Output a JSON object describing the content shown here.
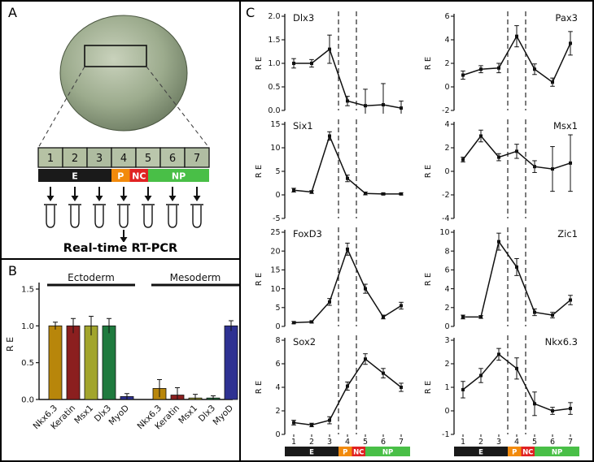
{
  "figure": {
    "panel_a_label": "A",
    "panel_b_label": "B",
    "panel_c_label": "C"
  },
  "panel_a": {
    "section_numbers": [
      "1",
      "2",
      "3",
      "4",
      "5",
      "6",
      "7"
    ],
    "regions": [
      {
        "label": "E",
        "color": "#1a1a1a",
        "text_color": "#ffffff",
        "units": 3
      },
      {
        "label": "P",
        "color": "#f28a0c",
        "text_color": "#ffffff",
        "units": 0.75
      },
      {
        "label": "NC",
        "color": "#e02222",
        "text_color": "#ffffff",
        "units": 0.75
      },
      {
        "label": "NP",
        "color": "#49bf47",
        "text_color": "#ffffff",
        "units": 2.5
      }
    ],
    "caption": "Real-time RT-PCR"
  },
  "x_axis": {
    "ticks": [
      "1",
      "2",
      "3",
      "4",
      "5",
      "6",
      "7"
    ]
  },
  "chart_data": [
    {
      "type": "bar",
      "panel": "B",
      "ylabel": "R E",
      "ylim": [
        0,
        1.5
      ],
      "yticks": [
        0,
        0.5,
        1,
        1.5
      ],
      "ytick_labels": [
        "0.0",
        "0.5",
        "1.0",
        "1.5"
      ],
      "bar_colors": [
        "#b8860b",
        "#8b1f1f",
        "#a2a52c",
        "#1f7a3e",
        "#2e3192"
      ],
      "groups": [
        {
          "label": "Ectoderm",
          "categories": [
            "Nkx6.3",
            "Keratin",
            "Msx1",
            "Dlx3",
            "MyoD"
          ],
          "values": [
            1.0,
            1.0,
            1.0,
            1.0,
            0.04
          ],
          "errors": [
            0.05,
            0.1,
            0.13,
            0.1,
            0.04
          ]
        },
        {
          "label": "Mesoderm",
          "categories": [
            "Nkx6.3",
            "Keratin",
            "Msx1",
            "Dlx3",
            "MyoD"
          ],
          "values": [
            0.15,
            0.06,
            0.02,
            0.02,
            1.0
          ],
          "errors": [
            0.12,
            0.1,
            0.05,
            0.03,
            0.07
          ]
        }
      ]
    },
    {
      "type": "line",
      "panel": "C",
      "title": "Dlx3",
      "title_side": "left",
      "ylabel": "R E",
      "x": [
        1,
        2,
        3,
        4,
        5,
        6,
        7
      ],
      "y": [
        1.0,
        1.0,
        1.3,
        0.2,
        0.1,
        0.12,
        0.05
      ],
      "errors": [
        0.1,
        0.08,
        0.3,
        0.1,
        0.35,
        0.45,
        0.15
      ],
      "ylim": [
        0,
        2
      ],
      "yticks": [
        0,
        0.5,
        1,
        1.5,
        2
      ],
      "ytick_labels": [
        "0.0",
        "0.5",
        "1.0",
        "1.5",
        "2.0"
      ],
      "dashed_x": [
        3.5,
        4.5
      ]
    },
    {
      "type": "line",
      "panel": "C",
      "title": "Pax3",
      "title_side": "right",
      "ylabel": "R E",
      "x": [
        1,
        2,
        3,
        4,
        5,
        6,
        7
      ],
      "y": [
        1.0,
        1.5,
        1.6,
        4.3,
        1.5,
        0.4,
        3.7
      ],
      "errors": [
        0.35,
        0.3,
        0.4,
        0.9,
        0.45,
        0.35,
        1.0
      ],
      "ylim": [
        -2,
        6
      ],
      "yticks": [
        -2,
        0,
        2,
        4,
        6
      ],
      "ytick_labels": [
        "-2",
        "0",
        "2",
        "4",
        "6"
      ],
      "dashed_x": [
        3.5,
        4.5
      ]
    },
    {
      "type": "line",
      "panel": "C",
      "title": "Six1",
      "title_side": "left",
      "ylabel": "R E",
      "x": [
        1,
        2,
        3,
        4,
        5,
        6,
        7
      ],
      "y": [
        1.0,
        0.6,
        12.5,
        3.5,
        0.3,
        0.2,
        0.2
      ],
      "errors": [
        0.4,
        0.3,
        0.9,
        0.7,
        0.3,
        0.2,
        0.2
      ],
      "ylim": [
        -5,
        15
      ],
      "yticks": [
        -5,
        0,
        5,
        10,
        15
      ],
      "ytick_labels": [
        "-5",
        "0",
        "5",
        "10",
        "15"
      ],
      "dashed_x": [
        3.5,
        4.5
      ]
    },
    {
      "type": "line",
      "panel": "C",
      "title": "Msx1",
      "title_side": "right",
      "ylabel": "R E",
      "x": [
        1,
        2,
        3,
        4,
        5,
        6,
        7
      ],
      "y": [
        1.0,
        3.0,
        1.2,
        1.7,
        0.4,
        0.2,
        0.7
      ],
      "errors": [
        0.2,
        0.5,
        0.3,
        0.6,
        0.5,
        1.9,
        2.4
      ],
      "ylim": [
        -4,
        4
      ],
      "yticks": [
        -4,
        -2,
        0,
        2,
        4
      ],
      "ytick_labels": [
        "-4",
        "-2",
        "0",
        "2",
        "4"
      ],
      "dashed_x": [
        3.5,
        4.5
      ]
    },
    {
      "type": "line",
      "panel": "C",
      "title": "FoxD3",
      "title_side": "left",
      "ylabel": "R E",
      "x": [
        1,
        2,
        3,
        4,
        5,
        6,
        7
      ],
      "y": [
        1.0,
        1.2,
        6.5,
        20.5,
        10.0,
        2.5,
        5.5
      ],
      "errors": [
        0.3,
        0.3,
        0.9,
        1.6,
        1.2,
        0.5,
        0.9
      ],
      "ylim": [
        0,
        25
      ],
      "yticks": [
        0,
        5,
        10,
        15,
        20,
        25
      ],
      "ytick_labels": [
        "0",
        "5",
        "10",
        "15",
        "20",
        "25"
      ],
      "dashed_x": [
        3.5,
        4.5
      ]
    },
    {
      "type": "line",
      "panel": "C",
      "title": "Zic1",
      "title_side": "right",
      "ylabel": "R E",
      "x": [
        1,
        2,
        3,
        4,
        5,
        6,
        7
      ],
      "y": [
        1.0,
        1.0,
        9.0,
        6.3,
        1.5,
        1.2,
        2.8
      ],
      "errors": [
        0.2,
        0.15,
        0.9,
        0.9,
        0.35,
        0.3,
        0.5
      ],
      "ylim": [
        0,
        10
      ],
      "yticks": [
        0,
        2,
        4,
        6,
        8,
        10
      ],
      "ytick_labels": [
        "0",
        "2",
        "4",
        "6",
        "8",
        "10"
      ],
      "dashed_x": [
        3.5,
        4.5
      ]
    },
    {
      "type": "line",
      "panel": "C",
      "title": "Sox2",
      "title_side": "left",
      "ylabel": "R E",
      "x": [
        1,
        2,
        3,
        4,
        5,
        6,
        7
      ],
      "y": [
        1.0,
        0.8,
        1.2,
        4.1,
        6.4,
        5.2,
        4.0
      ],
      "errors": [
        0.2,
        0.15,
        0.3,
        0.35,
        0.45,
        0.4,
        0.35
      ],
      "ylim": [
        0,
        8
      ],
      "yticks": [
        0,
        2,
        4,
        6,
        8
      ],
      "ytick_labels": [
        "0",
        "2",
        "4",
        "6",
        "8"
      ],
      "dashed_x": [
        3.5,
        4.5
      ]
    },
    {
      "type": "line",
      "panel": "C",
      "title": "Nkx6.3",
      "title_side": "right",
      "ylabel": "R E",
      "x": [
        1,
        2,
        3,
        4,
        5,
        6,
        7
      ],
      "y": [
        0.9,
        1.5,
        2.4,
        1.8,
        0.3,
        0.0,
        0.1
      ],
      "errors": [
        0.35,
        0.3,
        0.25,
        0.45,
        0.5,
        0.15,
        0.25
      ],
      "ylim": [
        -1,
        3
      ],
      "yticks": [
        -1,
        0,
        1,
        2,
        3
      ],
      "ytick_labels": [
        "-1",
        "0",
        "1",
        "2",
        "3"
      ],
      "dashed_x": [
        3.5,
        4.5
      ]
    }
  ]
}
